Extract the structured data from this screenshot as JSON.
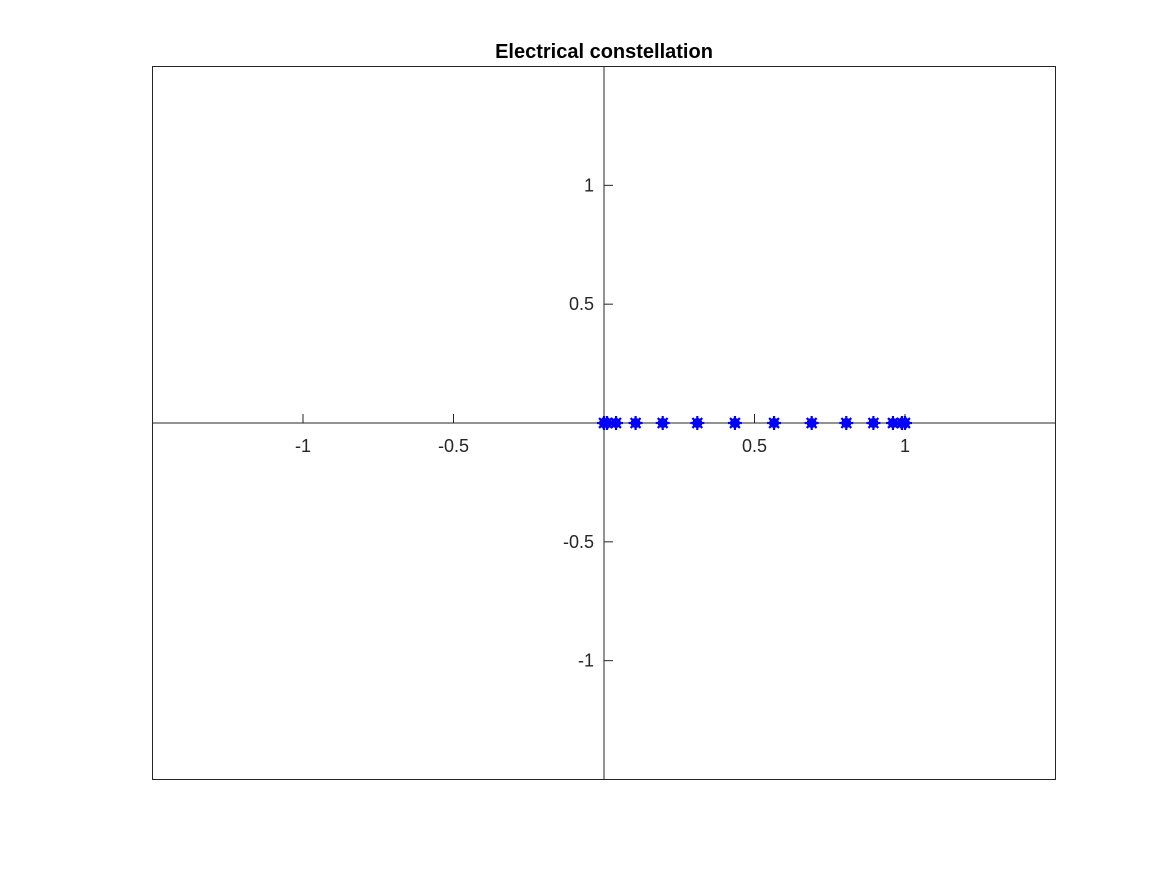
{
  "chart_data": {
    "type": "scatter",
    "title": "Electrical constellation",
    "xlabel": "",
    "ylabel": "",
    "xlim": [
      -1.5,
      1.5
    ],
    "ylim": [
      -1.5,
      1.5
    ],
    "x_ticks": [
      -1,
      -0.5,
      0.5,
      1
    ],
    "x_tick_labels": [
      "-1",
      "-0.5",
      "0.5",
      "1"
    ],
    "y_ticks": [
      1,
      0.5,
      -0.5,
      -1
    ],
    "y_tick_labels": [
      "1",
      "0.5",
      "-0.5",
      "-1"
    ],
    "grid": false,
    "axes_through_origin": true,
    "marker": "*",
    "series": [
      {
        "color": "#0000ff",
        "x": [
          0.0,
          0.01,
          0.04,
          0.105,
          0.195,
          0.31,
          0.435,
          0.565,
          0.69,
          0.805,
          0.895,
          0.96,
          0.99,
          1.0
        ],
        "y": [
          0,
          0,
          0,
          0,
          0,
          0,
          0,
          0,
          0,
          0,
          0,
          0,
          0,
          0
        ]
      }
    ]
  }
}
